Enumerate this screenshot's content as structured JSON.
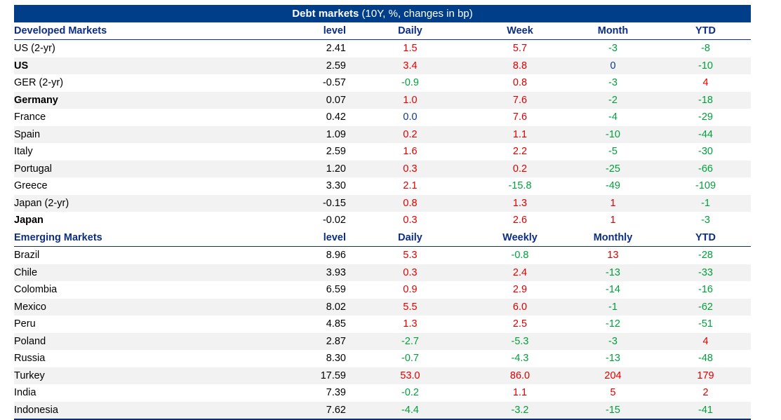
{
  "title": {
    "bold": "Debt markets",
    "rest": " (10Y, %, changes in bp)"
  },
  "colors": {
    "header_bg": "#003e8a",
    "header_text": "#0c2d83",
    "positive": "#e00000",
    "negative": "#00a03c",
    "zero": "#0b3a8f",
    "stripe": "#f2f2f2"
  },
  "sections": [
    {
      "id": "developed",
      "headers": [
        "Developed Markets",
        "level",
        "Daily",
        "Week",
        "Month",
        "YTD"
      ],
      "rows": [
        {
          "name": "US (2-yr)",
          "bold": false,
          "level": "2.41",
          "daily": "1.5",
          "week": "5.7",
          "month": "-3",
          "ytd": "-8"
        },
        {
          "name": "US",
          "bold": true,
          "level": "2.59",
          "daily": "3.4",
          "week": "8.8",
          "month": "0",
          "ytd": "-10"
        },
        {
          "name": "GER (2-yr)",
          "bold": false,
          "level": "-0.57",
          "daily": "-0.9",
          "week": "0.8",
          "month": "-3",
          "ytd": "4"
        },
        {
          "name": "Germany",
          "bold": true,
          "level": "0.07",
          "daily": "1.0",
          "week": "7.6",
          "month": "-2",
          "ytd": "-18"
        },
        {
          "name": "France",
          "bold": false,
          "level": "0.42",
          "daily": "0.0",
          "week": "7.6",
          "month": "-4",
          "ytd": "-29"
        },
        {
          "name": "Spain",
          "bold": false,
          "level": "1.09",
          "daily": "0.2",
          "week": "1.1",
          "month": "-10",
          "ytd": "-44"
        },
        {
          "name": "Italy",
          "bold": false,
          "level": "2.59",
          "daily": "1.6",
          "week": "2.2",
          "month": "-5",
          "ytd": "-30"
        },
        {
          "name": "Portugal",
          "bold": false,
          "level": "1.20",
          "daily": "0.3",
          "week": "0.2",
          "month": "-25",
          "ytd": "-66"
        },
        {
          "name": "Greece",
          "bold": false,
          "level": "3.30",
          "daily": "2.1",
          "week": "-15.8",
          "month": "-49",
          "ytd": "-109"
        },
        {
          "name": "Japan (2-yr)",
          "bold": false,
          "level": "-0.15",
          "daily": "0.8",
          "week": "1.3",
          "month": "1",
          "ytd": "-1"
        },
        {
          "name": "Japan",
          "bold": true,
          "level": "-0.02",
          "daily": "0.3",
          "week": "2.6",
          "month": "1",
          "ytd": "-3"
        }
      ]
    },
    {
      "id": "emerging",
      "headers": [
        "Emerging Markets",
        "level",
        "Daily",
        "Weekly",
        "Monthly",
        "YTD"
      ],
      "rows": [
        {
          "name": "Brazil",
          "bold": false,
          "level": "8.96",
          "daily": "5.3",
          "week": "-0.8",
          "month": "13",
          "ytd": "-28"
        },
        {
          "name": "Chile",
          "bold": false,
          "level": "3.93",
          "daily": "0.3",
          "week": "2.4",
          "month": "-13",
          "ytd": "-33"
        },
        {
          "name": "Colombia",
          "bold": false,
          "level": "6.59",
          "daily": "0.9",
          "week": "2.9",
          "month": "-14",
          "ytd": "-16"
        },
        {
          "name": "Mexico",
          "bold": false,
          "level": "8.02",
          "daily": "5.5",
          "week": "6.0",
          "month": "-1",
          "ytd": "-62"
        },
        {
          "name": "Peru",
          "bold": false,
          "level": "4.85",
          "daily": "1.3",
          "week": "2.5",
          "month": "-12",
          "ytd": "-51"
        },
        {
          "name": "Poland",
          "bold": false,
          "level": "2.87",
          "daily": "-2.7",
          "week": "-5.3",
          "month": "-3",
          "ytd": "4"
        },
        {
          "name": "Russia",
          "bold": false,
          "level": "8.30",
          "daily": "-0.7",
          "week": "-4.3",
          "month": "-13",
          "ytd": "-48"
        },
        {
          "name": "Turkey",
          "bold": false,
          "level": "17.59",
          "daily": "53.0",
          "week": "86.0",
          "month": "204",
          "ytd": "179"
        },
        {
          "name": "India",
          "bold": false,
          "level": "7.39",
          "daily": "-0.2",
          "week": "1.1",
          "month": "5",
          "ytd": "2"
        },
        {
          "name": "Indonesia",
          "bold": false,
          "level": "7.62",
          "daily": "-4.4",
          "week": "-3.2",
          "month": "-15",
          "ytd": "-41"
        }
      ]
    }
  ]
}
